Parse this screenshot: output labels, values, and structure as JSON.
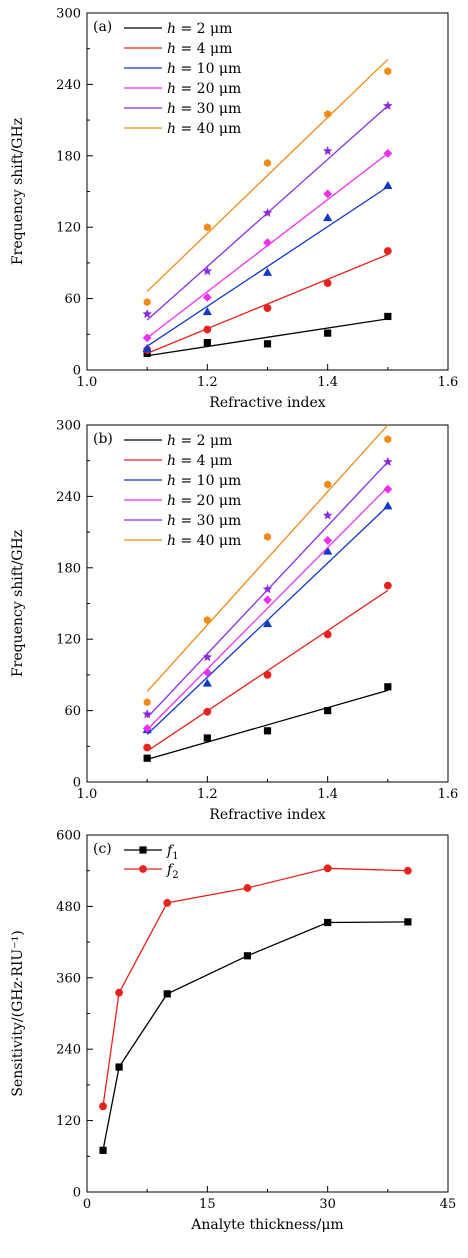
{
  "chart_data": [
    {
      "type": "scatter",
      "panel_label": "(a)",
      "xlabel": "Refractive index",
      "ylabel": "Frequency shift/GHz",
      "xlim": [
        1.0,
        1.6
      ],
      "ylim": [
        0,
        300
      ],
      "xticks": [
        "1.0",
        "1.2",
        "1.4",
        "1.6"
      ],
      "yticks": [
        "0",
        "60",
        "120",
        "180",
        "240",
        "300"
      ],
      "legend_position": "top-left",
      "x": [
        1.1,
        1.2,
        1.3,
        1.4,
        1.5
      ],
      "series": [
        {
          "name": "h = 2 μm",
          "var": "h",
          "eq": " = 2 μm",
          "color": "#000000",
          "marker": "square",
          "values": [
            14,
            23,
            22,
            31,
            45
          ],
          "fit": [
            12,
            43
          ]
        },
        {
          "name": "h = 4 μm",
          "var": "h",
          "eq": " = 4 μm",
          "color": "#e8231f",
          "marker": "circle",
          "values": [
            17,
            34,
            52,
            73,
            100
          ],
          "fit": [
            14,
            97
          ]
        },
        {
          "name": "h = 10 μm",
          "var": "h",
          "eq": " = 10 μm",
          "color": "#1238c8",
          "marker": "triangle",
          "values": [
            18,
            49,
            82,
            128,
            155
          ],
          "fit": [
            20,
            154
          ]
        },
        {
          "name": "h = 20 μm",
          "var": "h",
          "eq": " = 20 μm",
          "color": "#f02ef0",
          "marker": "diamond",
          "values": [
            27,
            61,
            107,
            148,
            182
          ],
          "fit": [
            27,
            182
          ]
        },
        {
          "name": "h = 30 μm",
          "var": "h",
          "eq": " = 30 μm",
          "color": "#8a2be2",
          "marker": "star",
          "values": [
            47,
            83,
            132,
            184,
            222
          ],
          "fit": [
            42,
            222
          ]
        },
        {
          "name": "h = 40 μm",
          "var": "h",
          "eq": " = 40 μm",
          "color": "#f28a14",
          "marker": "hexagon",
          "values": [
            57,
            120,
            174,
            215,
            251
          ],
          "fit": [
            66,
            261
          ]
        }
      ]
    },
    {
      "type": "scatter",
      "panel_label": "(b)",
      "xlabel": "Refractive index",
      "ylabel": "Frequency shift/GHz",
      "xlim": [
        1.0,
        1.6
      ],
      "ylim": [
        0,
        300
      ],
      "xticks": [
        "1.0",
        "1.2",
        "1.4",
        "1.6"
      ],
      "yticks": [
        "0",
        "60",
        "120",
        "180",
        "240",
        "300"
      ],
      "legend_position": "top-left",
      "x": [
        1.1,
        1.2,
        1.3,
        1.4,
        1.5
      ],
      "series": [
        {
          "name": "h = 2 μm",
          "var": "h",
          "eq": " = 2 μm",
          "color": "#000000",
          "marker": "square",
          "values": [
            20,
            37,
            43,
            60,
            80
          ],
          "fit": [
            19,
            77
          ]
        },
        {
          "name": "h = 4 μm",
          "var": "h",
          "eq": " = 4 μm",
          "color": "#e8231f",
          "marker": "circle",
          "values": [
            29,
            59,
            90,
            124,
            165
          ],
          "fit": [
            26,
            161
          ]
        },
        {
          "name": "h = 10 μm",
          "var": "h",
          "eq": " = 10 μm",
          "color": "#1238c8",
          "marker": "triangle",
          "values": [
            44,
            83,
            133,
            194,
            232
          ],
          "fit": [
            40,
            232
          ]
        },
        {
          "name": "h = 20 μm",
          "var": "h",
          "eq": " = 20 μm",
          "color": "#f02ef0",
          "marker": "diamond",
          "values": [
            45,
            92,
            153,
            203,
            246
          ],
          "fit": [
            44,
            248
          ]
        },
        {
          "name": "h = 30 μm",
          "var": "h",
          "eq": " = 30 μm",
          "color": "#8a2be2",
          "marker": "star",
          "values": [
            57,
            105,
            162,
            224,
            269
          ],
          "fit": [
            54,
            269
          ]
        },
        {
          "name": "h = 40 μm",
          "var": "h",
          "eq": " = 40 μm",
          "color": "#f28a14",
          "marker": "hexagon",
          "values": [
            67,
            136,
            206,
            250,
            288
          ],
          "fit": [
            76,
            300
          ]
        }
      ]
    },
    {
      "type": "line",
      "panel_label": "(c)",
      "xlabel": "Analyte thickness/μm",
      "ylabel": "Sensitivity/(GHz·RIU⁻¹)",
      "xlim": [
        0,
        45
      ],
      "ylim": [
        0,
        600
      ],
      "xticks": [
        "0",
        "15",
        "30",
        "45"
      ],
      "yticks": [
        "0",
        "120",
        "240",
        "360",
        "480",
        "600"
      ],
      "legend_position": "top-left",
      "x": [
        2,
        4,
        10,
        20,
        30,
        40
      ],
      "series": [
        {
          "name": "f1",
          "var": "f",
          "sub": "1",
          "color": "#000000",
          "marker": "square",
          "values": [
            70,
            210,
            333,
            397,
            453,
            454
          ]
        },
        {
          "name": "f2",
          "var": "f",
          "sub": "2",
          "color": "#e8231f",
          "marker": "circle",
          "values": [
            144,
            335,
            486,
            511,
            544,
            540
          ]
        }
      ]
    }
  ]
}
